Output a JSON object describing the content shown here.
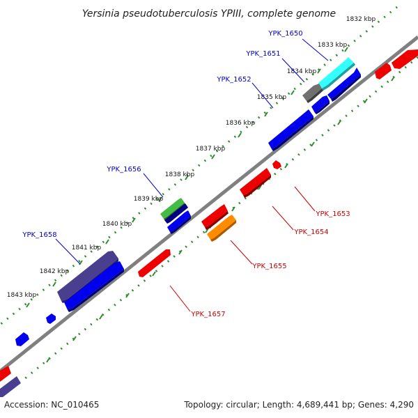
{
  "title": "Yersinia pseudotuberculosis YPIII, complete genome",
  "accession": "Accession: NC_010465",
  "summary": "Topology: circular; Length: 4,689,441 bp; Genes: 4,290",
  "ticks": [
    "1832 kbp",
    "1833 kbp",
    "1834 kbp",
    "1835 kbp",
    "1836 kbp",
    "1837 kbp",
    "1838 kbp",
    "1839 kbp",
    "1840 kbp",
    "1841 kbp",
    "1842 kbp",
    "1843 kbp"
  ],
  "gene_labels_top": [
    "YPK_1650",
    "YPK_1651",
    "YPK_1652",
    "YPK_1656",
    "YPK_1658"
  ],
  "gene_labels_bottom": [
    "YPK_1653",
    "YPK_1654",
    "YPK_1655",
    "YPK_1657"
  ],
  "colors": {
    "backbone": "#808080",
    "tick_track": "#2e8b2e",
    "plus_cds": "#0000ee",
    "minus_cds": "#ee0000",
    "label_top": "#0000cc",
    "label_bottom": "#cc0000",
    "cyan": "#33ffff",
    "grey": "#707070",
    "green": "#44bb44",
    "navy": "#000080",
    "purple": "#4a3f8f",
    "orange": "#ff8c00"
  }
}
